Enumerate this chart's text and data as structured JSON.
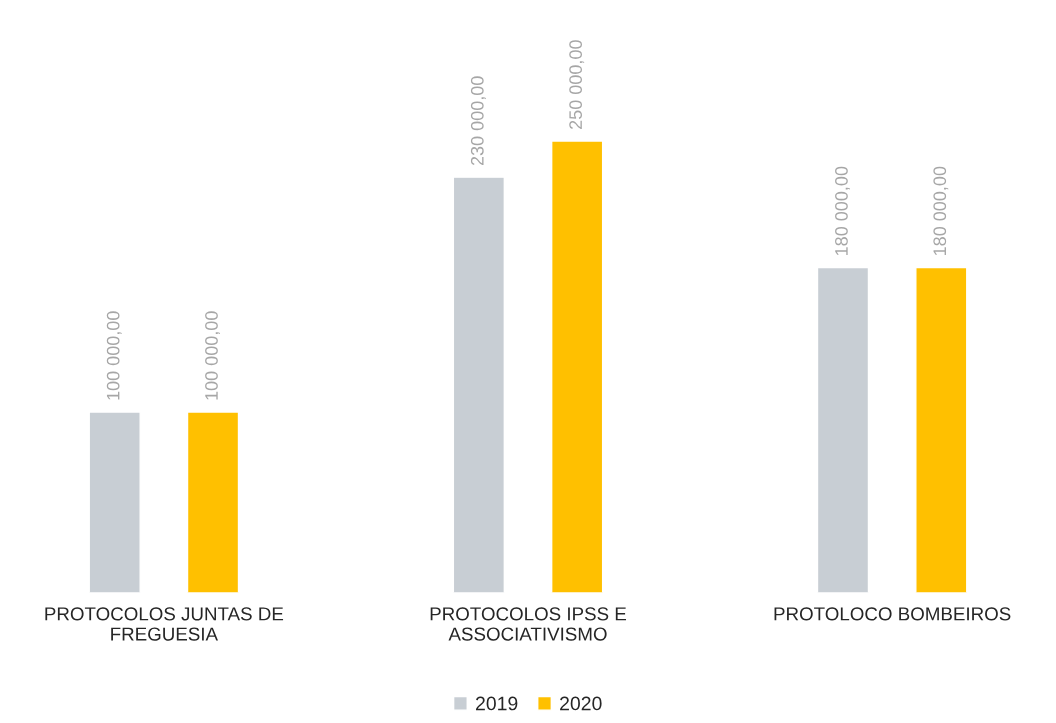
{
  "chart_data": {
    "type": "bar",
    "categories": [
      "PROTOCOLOS JUNTAS DE\nFREGUESIA",
      "PROTOCOLOS IPSS E\nASSOCIATIVISMO",
      "PROTOLOCO BOMBEIROS"
    ],
    "series": [
      {
        "name": "2019",
        "color": "#c8ced4",
        "values": [
          100000,
          230000,
          180000
        ],
        "value_labels": [
          "100 000,00",
          "230 000,00",
          "180 000,00"
        ]
      },
      {
        "name": "2020",
        "color": "#ffc000",
        "values": [
          100000,
          250000,
          180000
        ],
        "value_labels": [
          "100 000,00",
          "250 000,00",
          "180 000,00"
        ]
      }
    ],
    "legend": "bottom",
    "grid": false
  }
}
